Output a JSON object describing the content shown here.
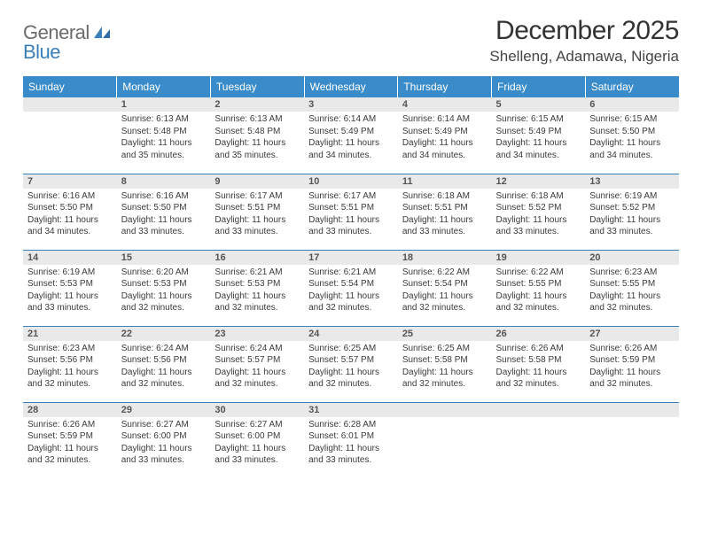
{
  "logo": {
    "text1": "General",
    "text2": "Blue"
  },
  "title": "December 2025",
  "location": "Shelleng, Adamawa, Nigeria",
  "colors": {
    "header_bg": "#3a8bc9",
    "header_fg": "#ffffff",
    "daynum_bg": "#e9e9e9",
    "row_border": "#3a7fb8",
    "logo_gray": "#6b6b6b",
    "logo_blue": "#3a7fb8"
  },
  "weekdays": [
    "Sunday",
    "Monday",
    "Tuesday",
    "Wednesday",
    "Thursday",
    "Friday",
    "Saturday"
  ],
  "first_weekday_index": 1,
  "days": [
    {
      "n": 1,
      "sunrise": "6:13 AM",
      "sunset": "5:48 PM",
      "daylight": "11 hours and 35 minutes."
    },
    {
      "n": 2,
      "sunrise": "6:13 AM",
      "sunset": "5:48 PM",
      "daylight": "11 hours and 35 minutes."
    },
    {
      "n": 3,
      "sunrise": "6:14 AM",
      "sunset": "5:49 PM",
      "daylight": "11 hours and 34 minutes."
    },
    {
      "n": 4,
      "sunrise": "6:14 AM",
      "sunset": "5:49 PM",
      "daylight": "11 hours and 34 minutes."
    },
    {
      "n": 5,
      "sunrise": "6:15 AM",
      "sunset": "5:49 PM",
      "daylight": "11 hours and 34 minutes."
    },
    {
      "n": 6,
      "sunrise": "6:15 AM",
      "sunset": "5:50 PM",
      "daylight": "11 hours and 34 minutes."
    },
    {
      "n": 7,
      "sunrise": "6:16 AM",
      "sunset": "5:50 PM",
      "daylight": "11 hours and 34 minutes."
    },
    {
      "n": 8,
      "sunrise": "6:16 AM",
      "sunset": "5:50 PM",
      "daylight": "11 hours and 33 minutes."
    },
    {
      "n": 9,
      "sunrise": "6:17 AM",
      "sunset": "5:51 PM",
      "daylight": "11 hours and 33 minutes."
    },
    {
      "n": 10,
      "sunrise": "6:17 AM",
      "sunset": "5:51 PM",
      "daylight": "11 hours and 33 minutes."
    },
    {
      "n": 11,
      "sunrise": "6:18 AM",
      "sunset": "5:51 PM",
      "daylight": "11 hours and 33 minutes."
    },
    {
      "n": 12,
      "sunrise": "6:18 AM",
      "sunset": "5:52 PM",
      "daylight": "11 hours and 33 minutes."
    },
    {
      "n": 13,
      "sunrise": "6:19 AM",
      "sunset": "5:52 PM",
      "daylight": "11 hours and 33 minutes."
    },
    {
      "n": 14,
      "sunrise": "6:19 AM",
      "sunset": "5:53 PM",
      "daylight": "11 hours and 33 minutes."
    },
    {
      "n": 15,
      "sunrise": "6:20 AM",
      "sunset": "5:53 PM",
      "daylight": "11 hours and 32 minutes."
    },
    {
      "n": 16,
      "sunrise": "6:21 AM",
      "sunset": "5:53 PM",
      "daylight": "11 hours and 32 minutes."
    },
    {
      "n": 17,
      "sunrise": "6:21 AM",
      "sunset": "5:54 PM",
      "daylight": "11 hours and 32 minutes."
    },
    {
      "n": 18,
      "sunrise": "6:22 AM",
      "sunset": "5:54 PM",
      "daylight": "11 hours and 32 minutes."
    },
    {
      "n": 19,
      "sunrise": "6:22 AM",
      "sunset": "5:55 PM",
      "daylight": "11 hours and 32 minutes."
    },
    {
      "n": 20,
      "sunrise": "6:23 AM",
      "sunset": "5:55 PM",
      "daylight": "11 hours and 32 minutes."
    },
    {
      "n": 21,
      "sunrise": "6:23 AM",
      "sunset": "5:56 PM",
      "daylight": "11 hours and 32 minutes."
    },
    {
      "n": 22,
      "sunrise": "6:24 AM",
      "sunset": "5:56 PM",
      "daylight": "11 hours and 32 minutes."
    },
    {
      "n": 23,
      "sunrise": "6:24 AM",
      "sunset": "5:57 PM",
      "daylight": "11 hours and 32 minutes."
    },
    {
      "n": 24,
      "sunrise": "6:25 AM",
      "sunset": "5:57 PM",
      "daylight": "11 hours and 32 minutes."
    },
    {
      "n": 25,
      "sunrise": "6:25 AM",
      "sunset": "5:58 PM",
      "daylight": "11 hours and 32 minutes."
    },
    {
      "n": 26,
      "sunrise": "6:26 AM",
      "sunset": "5:58 PM",
      "daylight": "11 hours and 32 minutes."
    },
    {
      "n": 27,
      "sunrise": "6:26 AM",
      "sunset": "5:59 PM",
      "daylight": "11 hours and 32 minutes."
    },
    {
      "n": 28,
      "sunrise": "6:26 AM",
      "sunset": "5:59 PM",
      "daylight": "11 hours and 32 minutes."
    },
    {
      "n": 29,
      "sunrise": "6:27 AM",
      "sunset": "6:00 PM",
      "daylight": "11 hours and 33 minutes."
    },
    {
      "n": 30,
      "sunrise": "6:27 AM",
      "sunset": "6:00 PM",
      "daylight": "11 hours and 33 minutes."
    },
    {
      "n": 31,
      "sunrise": "6:28 AM",
      "sunset": "6:01 PM",
      "daylight": "11 hours and 33 minutes."
    }
  ],
  "labels": {
    "sunrise": "Sunrise:",
    "sunset": "Sunset:",
    "daylight": "Daylight:"
  }
}
